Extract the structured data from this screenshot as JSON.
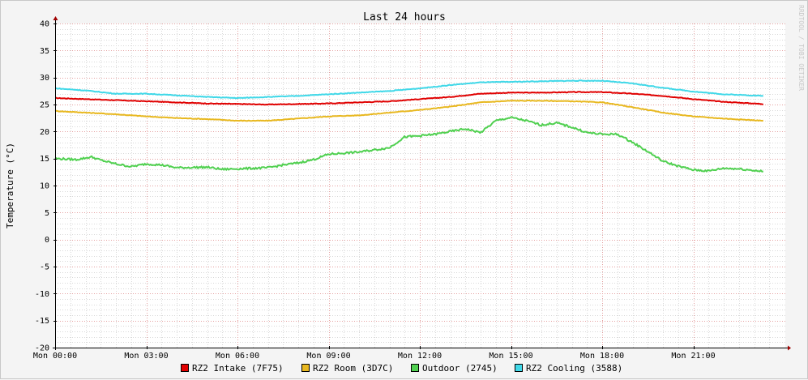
{
  "chart_data": {
    "type": "line",
    "title": "Last 24 hours",
    "ylabel": "Temperature (°C)",
    "xlabel": "",
    "watermark": "RRDTOOL / TOBI OETIKER",
    "ylim": [
      -20,
      40
    ],
    "yticks": [
      40,
      35,
      30,
      25,
      20,
      15,
      10,
      5,
      0,
      -5,
      -10,
      -15,
      -20
    ],
    "x_range_hours": [
      0,
      23.3
    ],
    "xticks": [
      {
        "h": 0,
        "label": "Mon 00:00"
      },
      {
        "h": 3,
        "label": "Mon 03:00"
      },
      {
        "h": 6,
        "label": "Mon 06:00"
      },
      {
        "h": 9,
        "label": "Mon 09:00"
      },
      {
        "h": 12,
        "label": "Mon 12:00"
      },
      {
        "h": 15,
        "label": "Mon 15:00"
      },
      {
        "h": 18,
        "label": "Mon 18:00"
      },
      {
        "h": 21,
        "label": "Mon 21:00"
      }
    ],
    "colors": {
      "background": "#f4f4f4",
      "plot_background": "#ffffff",
      "major_grid": "#e5a0a0",
      "minor_grid": "#d8d8d8",
      "axis": "#000000",
      "arrow": "#a00000"
    },
    "grid": true,
    "legend_position": "bottom",
    "series": [
      {
        "name": "RZ2 Intake (7F75)",
        "color": "#e00000",
        "points": [
          [
            0,
            26.2
          ],
          [
            1,
            26.0
          ],
          [
            2,
            25.8
          ],
          [
            3,
            25.6
          ],
          [
            4,
            25.4
          ],
          [
            5,
            25.2
          ],
          [
            6,
            25.1
          ],
          [
            7,
            25.0
          ],
          [
            8,
            25.1
          ],
          [
            9,
            25.2
          ],
          [
            10,
            25.4
          ],
          [
            11,
            25.6
          ],
          [
            12,
            26.0
          ],
          [
            13,
            26.4
          ],
          [
            14,
            27.0
          ],
          [
            15,
            27.2
          ],
          [
            16,
            27.2
          ],
          [
            17,
            27.3
          ],
          [
            18,
            27.3
          ],
          [
            19,
            27.0
          ],
          [
            20,
            26.6
          ],
          [
            21,
            26.0
          ],
          [
            22,
            25.5
          ],
          [
            23.3,
            25.1
          ]
        ]
      },
      {
        "name": "RZ2 Room (3D7C)",
        "color": "#e8b820",
        "points": [
          [
            0,
            23.8
          ],
          [
            1,
            23.5
          ],
          [
            2,
            23.2
          ],
          [
            3,
            22.8
          ],
          [
            4,
            22.5
          ],
          [
            5,
            22.3
          ],
          [
            6,
            22.0
          ],
          [
            7,
            22.0
          ],
          [
            8,
            22.4
          ],
          [
            9,
            22.8
          ],
          [
            10,
            23.0
          ],
          [
            11,
            23.5
          ],
          [
            12,
            24.0
          ],
          [
            13,
            24.6
          ],
          [
            14,
            25.4
          ],
          [
            15,
            25.7
          ],
          [
            16,
            25.7
          ],
          [
            17,
            25.6
          ],
          [
            18,
            25.4
          ],
          [
            19,
            24.5
          ],
          [
            20,
            23.5
          ],
          [
            21,
            22.8
          ],
          [
            22,
            22.4
          ],
          [
            23.3,
            22.0
          ]
        ]
      },
      {
        "name": "Outdoor (2745)",
        "color": "#50d050",
        "points": [
          [
            0,
            15.0
          ],
          [
            0.7,
            14.8
          ],
          [
            1.2,
            15.3
          ],
          [
            1.5,
            14.7
          ],
          [
            2,
            14.0
          ],
          [
            2.5,
            13.5
          ],
          [
            3,
            14.0
          ],
          [
            3.5,
            13.8
          ],
          [
            4,
            13.3
          ],
          [
            5,
            13.4
          ],
          [
            5.5,
            13.0
          ],
          [
            6,
            13.1
          ],
          [
            7,
            13.3
          ],
          [
            7.5,
            13.8
          ],
          [
            8,
            14.2
          ],
          [
            8.5,
            14.8
          ],
          [
            9,
            15.8
          ],
          [
            10,
            16.2
          ],
          [
            11,
            17.0
          ],
          [
            11.5,
            19.0
          ],
          [
            12,
            19.2
          ],
          [
            12.5,
            19.5
          ],
          [
            13,
            20.0
          ],
          [
            13.5,
            20.5
          ],
          [
            14,
            19.8
          ],
          [
            14.5,
            22.0
          ],
          [
            15,
            22.6
          ],
          [
            15.5,
            22.0
          ],
          [
            16,
            21.2
          ],
          [
            16.5,
            21.6
          ],
          [
            17,
            20.8
          ],
          [
            17.5,
            19.8
          ],
          [
            18,
            19.5
          ],
          [
            18.5,
            19.5
          ],
          [
            19,
            18.0
          ],
          [
            19.5,
            16.3
          ],
          [
            20,
            14.5
          ],
          [
            20.5,
            13.6
          ],
          [
            21,
            12.9
          ],
          [
            21.5,
            12.7
          ],
          [
            22,
            13.2
          ],
          [
            22.5,
            13.1
          ],
          [
            23,
            12.8
          ],
          [
            23.3,
            12.6
          ]
        ]
      },
      {
        "name": "RZ2 Cooling (3588)",
        "color": "#40d8e8",
        "points": [
          [
            0,
            28.0
          ],
          [
            1,
            27.6
          ],
          [
            2,
            27.0
          ],
          [
            3,
            27.0
          ],
          [
            4,
            26.7
          ],
          [
            5,
            26.4
          ],
          [
            6,
            26.2
          ],
          [
            7,
            26.4
          ],
          [
            8,
            26.6
          ],
          [
            9,
            26.9
          ],
          [
            10,
            27.2
          ],
          [
            11,
            27.5
          ],
          [
            12,
            28.0
          ],
          [
            13,
            28.6
          ],
          [
            14,
            29.1
          ],
          [
            15,
            29.2
          ],
          [
            16,
            29.3
          ],
          [
            17,
            29.4
          ],
          [
            18,
            29.4
          ],
          [
            19,
            28.9
          ],
          [
            20,
            28.1
          ],
          [
            21,
            27.4
          ],
          [
            22,
            26.9
          ],
          [
            23.3,
            26.6
          ]
        ]
      }
    ]
  }
}
